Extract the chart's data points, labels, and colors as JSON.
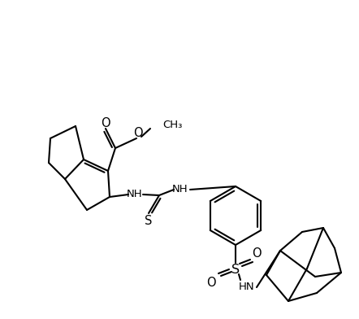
{
  "background": "#ffffff",
  "line_color": "#000000",
  "line_width": 1.5,
  "font_size": 9.5,
  "figsize": [
    4.42,
    3.92
  ],
  "dpi": 100
}
